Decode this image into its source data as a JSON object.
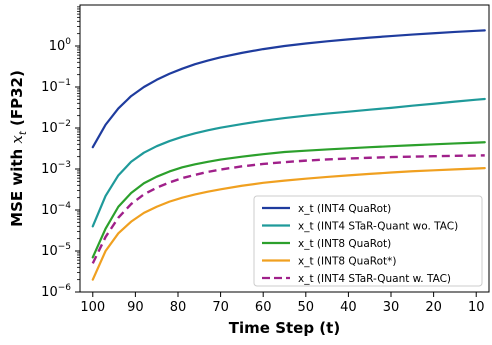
{
  "chart_data": {
    "type": "line",
    "xlabel": "Time Step (t)",
    "ylabel_prefix": "MSE with ",
    "ylabel_var": "x",
    "ylabel_sub": "t",
    "ylabel_suffix": " (FP32)",
    "x_reversed": true,
    "xlim": [
      103,
      7
    ],
    "ylim": [
      1e-06,
      10
    ],
    "yscale": "log",
    "x_ticks": [
      100,
      90,
      80,
      70,
      60,
      50,
      40,
      30,
      20,
      10
    ],
    "y_ticks": [
      {
        "value": 1e-06,
        "base": "10",
        "exp": "−6"
      },
      {
        "value": 1e-05,
        "base": "10",
        "exp": "−5"
      },
      {
        "value": 0.0001,
        "base": "10",
        "exp": "−4"
      },
      {
        "value": 0.001,
        "base": "10",
        "exp": "−3"
      },
      {
        "value": 0.01,
        "base": "10",
        "exp": "−2"
      },
      {
        "value": 0.1,
        "base": "10",
        "exp": "−1"
      },
      {
        "value": 1,
        "base": "10",
        "exp": "0"
      }
    ],
    "grid": false,
    "legend_position": "lower-right",
    "x": [
      100,
      97,
      94,
      91,
      88,
      85,
      82,
      79,
      76,
      73,
      70,
      65,
      60,
      55,
      50,
      45,
      40,
      35,
      30,
      25,
      20,
      15,
      10,
      8
    ],
    "series": [
      {
        "name": "x_t (INT4 QuaRot)",
        "color": "#1f3c9e",
        "dash": "solid",
        "values": [
          0.0034,
          0.012,
          0.03,
          0.06,
          0.1,
          0.15,
          0.21,
          0.28,
          0.36,
          0.44,
          0.53,
          0.68,
          0.84,
          1.0,
          1.15,
          1.3,
          1.45,
          1.6,
          1.75,
          1.9,
          2.05,
          2.2,
          2.35,
          2.4
        ]
      },
      {
        "name": "x_t (INT4 STaR-Quant wo. TAC)",
        "color": "#1f9a9a",
        "dash": "solid",
        "values": [
          4e-05,
          0.00022,
          0.0007,
          0.0015,
          0.0025,
          0.0036,
          0.0048,
          0.0061,
          0.0074,
          0.0088,
          0.0102,
          0.0125,
          0.015,
          0.0175,
          0.02,
          0.0225,
          0.025,
          0.028,
          0.031,
          0.035,
          0.039,
          0.044,
          0.049,
          0.051
        ]
      },
      {
        "name": "x_t (INT8 QuaRot)",
        "color": "#2ca02c",
        "dash": "solid",
        "values": [
          7e-06,
          3.5e-05,
          0.00012,
          0.00026,
          0.00045,
          0.00065,
          0.00087,
          0.0011,
          0.0013,
          0.0015,
          0.0017,
          0.002,
          0.0023,
          0.0026,
          0.0028,
          0.003,
          0.0032,
          0.0034,
          0.0036,
          0.0038,
          0.004,
          0.0042,
          0.0044,
          0.0045
        ]
      },
      {
        "name": "x_t (INT8 QuaRot*)",
        "color": "#f0a020",
        "dash": "solid",
        "values": [
          2e-06,
          1e-05,
          2.7e-05,
          5.2e-05,
          8.5e-05,
          0.00012,
          0.00016,
          0.0002,
          0.00024,
          0.00028,
          0.00032,
          0.00039,
          0.00046,
          0.00052,
          0.00058,
          0.00064,
          0.0007,
          0.00076,
          0.00082,
          0.00088,
          0.00093,
          0.00098,
          0.00103,
          0.00105
        ]
      },
      {
        "name": "x_t (INT4 STaR-Quant w. TAC)",
        "color": "#a0208a",
        "dash": "dashed",
        "values": [
          5e-06,
          2.2e-05,
          6.5e-05,
          0.00014,
          0.00024,
          0.00035,
          0.00047,
          0.0006,
          0.00072,
          0.00085,
          0.00097,
          0.00116,
          0.00133,
          0.00147,
          0.0016,
          0.00171,
          0.0018,
          0.00188,
          0.00195,
          0.002,
          0.00205,
          0.0021,
          0.00213,
          0.00215
        ]
      }
    ]
  }
}
